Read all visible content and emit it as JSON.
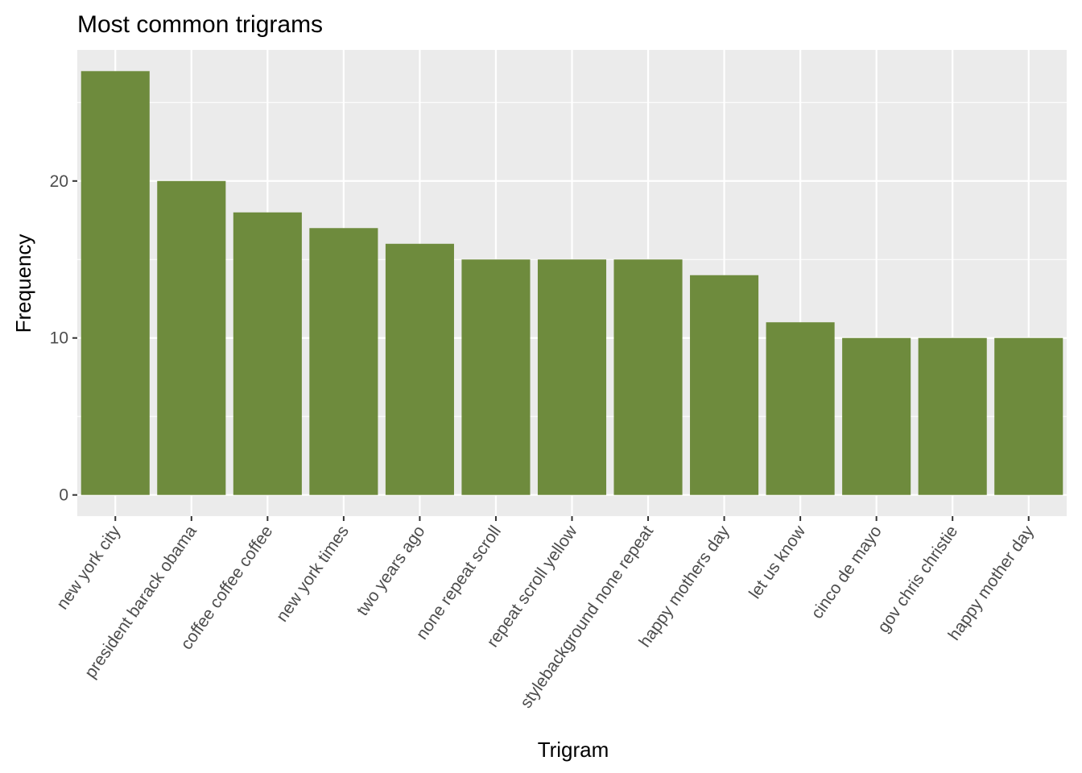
{
  "chart_data": {
    "type": "bar",
    "title": "Most common trigrams",
    "xlabel": "Trigram",
    "ylabel": "Frequency",
    "categories": [
      "new york city",
      "president barack obama",
      "coffee coffee coffee",
      "new york times",
      "two years ago",
      "none repeat scroll",
      "repeat scroll yellow",
      "stylebackground none repeat",
      "happy mothers day",
      "let us know",
      "cinco de mayo",
      "gov chris christie",
      "happy mother day"
    ],
    "values": [
      27,
      20,
      18,
      17,
      16,
      15,
      15,
      15,
      14,
      11,
      10,
      10,
      10
    ],
    "ylim": [
      -1.35,
      28.35
    ],
    "yticks": [
      0,
      10,
      20
    ],
    "grid": true,
    "legend": "none",
    "colors": {
      "bar": "#6E8B3D",
      "panel": "#EBEBEB",
      "grid": "#FFFFFF",
      "tick_text": "#4D4D4D",
      "tick_mark": "#333333"
    }
  }
}
